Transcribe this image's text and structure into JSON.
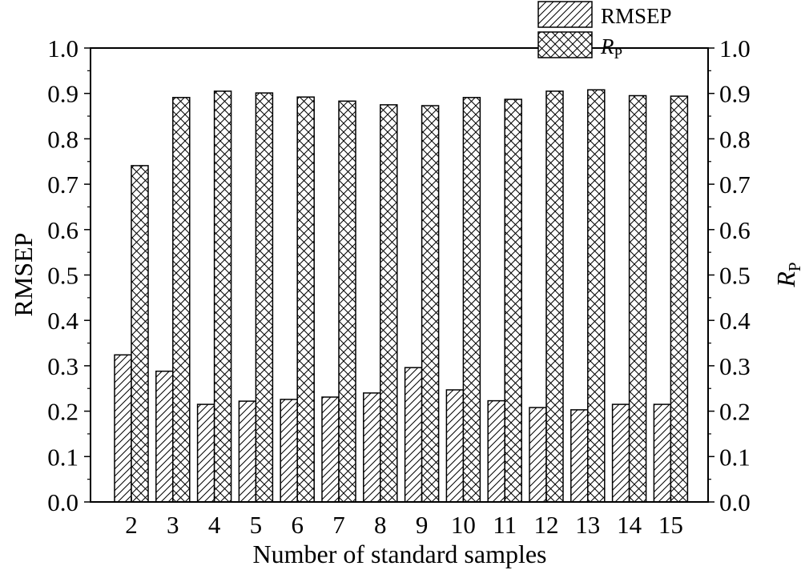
{
  "chart_data": {
    "type": "bar",
    "xlabel": "Number of standard samples",
    "ylabel_left": "RMSEP",
    "ylabel_right": {
      "main": "R",
      "sub": "P"
    },
    "ylim": [
      0,
      1.0
    ],
    "yticks": [
      "0.0",
      "0.1",
      "0.2",
      "0.3",
      "0.4",
      "0.5",
      "0.6",
      "0.7",
      "0.8",
      "0.9",
      "1.0"
    ],
    "categories": [
      "2",
      "3",
      "4",
      "5",
      "6",
      "7",
      "8",
      "9",
      "10",
      "11",
      "12",
      "13",
      "14",
      "15"
    ],
    "series": [
      {
        "name": "RMSEP",
        "pattern": "diagonal-hatch",
        "values": [
          0.324,
          0.288,
          0.215,
          0.222,
          0.226,
          0.231,
          0.24,
          0.296,
          0.247,
          0.223,
          0.208,
          0.203,
          0.215,
          0.215
        ]
      },
      {
        "name": {
          "main": "R",
          "sub": "P"
        },
        "pattern": "cross-hatch",
        "values": [
          0.741,
          0.891,
          0.905,
          0.901,
          0.892,
          0.883,
          0.875,
          0.873,
          0.891,
          0.887,
          0.905,
          0.908,
          0.895,
          0.894
        ]
      }
    ],
    "legend_position": "top-right",
    "grid": false,
    "colors": {
      "stroke": "#000000",
      "fill": "#ffffff"
    }
  }
}
